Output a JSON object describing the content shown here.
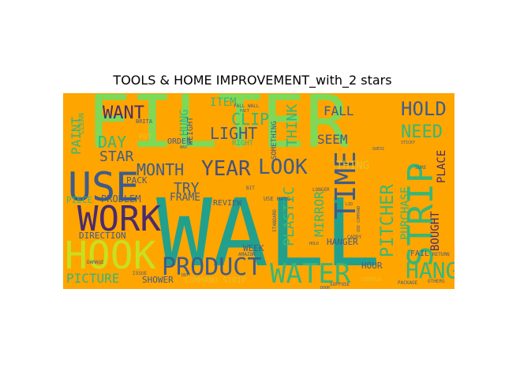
{
  "figure": {
    "title": "TOOLS & HOME IMPROVEMENT_with_2 stars",
    "background": "#FFA500"
  },
  "palette": {
    "lime": "#7ED957",
    "yellowgreen": "#C7E020",
    "teal": "#21A08D",
    "tealLight": "#35B779",
    "blue": "#3E5C8A",
    "slate": "#46507A",
    "purple": "#4A2C6D",
    "gold": "#E8C02A"
  },
  "words": [
    {
      "text": "FILTER",
      "color": "#7ED957"
    },
    {
      "text": "WALL",
      "color": "#21A08D"
    },
    {
      "text": "HOOK",
      "color": "#C7E020"
    },
    {
      "text": "WORK",
      "color": "#4A2C6D"
    },
    {
      "text": "USE",
      "color": "#3E5C8A"
    },
    {
      "text": "STRIP",
      "color": "#35B779"
    },
    {
      "text": "WATER",
      "color": "#35B779"
    },
    {
      "text": "HANG",
      "color": "#35B779"
    },
    {
      "text": "PRODUCT",
      "color": "#3E5C8A"
    },
    {
      "text": "TIME",
      "color": "#3E5C8A"
    },
    {
      "text": "YEAR",
      "color": "#46507A"
    },
    {
      "text": "LOOK",
      "color": "#3E5C8A"
    },
    {
      "text": "MONTH",
      "color": "#3E5C8A"
    },
    {
      "text": "HOLD",
      "color": "#3E5C8A"
    },
    {
      "text": "NEED",
      "color": "#35B779"
    },
    {
      "text": "WANT",
      "color": "#4A2C6D"
    },
    {
      "text": "LIGHT",
      "color": "#3E5C8A"
    },
    {
      "text": "CLIP",
      "color": "#35B779"
    },
    {
      "text": "DAY",
      "color": "#35B779"
    },
    {
      "text": "STAR",
      "color": "#3E5C8A"
    },
    {
      "text": "TRY",
      "color": "#3E5C8A"
    },
    {
      "text": "PITCHER",
      "color": "#35B779"
    },
    {
      "text": "PLASTIC",
      "color": "#35B779"
    },
    {
      "text": "THINK",
      "color": "#35B779"
    },
    {
      "text": "PAINT",
      "color": "#35B779"
    },
    {
      "text": "MIRROR",
      "color": "#35B779"
    },
    {
      "text": "PICTURE",
      "color": "#35B779"
    },
    {
      "text": "SEEM",
      "color": "#3E5C8A"
    },
    {
      "text": "FALL",
      "color": "#3E5C8A"
    },
    {
      "text": "ITEM",
      "color": "#35B779"
    },
    {
      "text": "HUNG",
      "color": "#35B779"
    },
    {
      "text": "PURCHASE",
      "color": "#35B779"
    },
    {
      "text": "BOUGHT",
      "color": "#4A2C6D"
    },
    {
      "text": "PLACE",
      "color": "#4A2C6D"
    },
    {
      "text": "THING",
      "color": "#E8C02A"
    },
    {
      "text": "FRAME",
      "color": "#3E5C8A"
    },
    {
      "text": "PROBLEM",
      "color": "#3E5C8A"
    },
    {
      "text": "PIECE",
      "color": "#35B779"
    },
    {
      "text": "PACK",
      "color": "#3E5C8A"
    },
    {
      "text": "REVIEW",
      "color": "#3E5C8A"
    },
    {
      "text": "DIRECTION",
      "color": "#3E5C8A"
    },
    {
      "text": "WEEK",
      "color": "#3E5C8A"
    },
    {
      "text": "HANGER",
      "color": "#3E5C8A"
    },
    {
      "text": "HOUR",
      "color": "#3E5C8A"
    },
    {
      "text": "FAIL",
      "color": "#3E5C8A"
    },
    {
      "text": "SHOWER",
      "color": "#3E5C8A"
    },
    {
      "text": "COMMAND STRIP",
      "color": "#E8C02A"
    },
    {
      "text": "ORDER",
      "color": "#3E5C8A"
    },
    {
      "text": "WEIGHT",
      "color": "#3E5C8A"
    },
    {
      "text": "CLEAN",
      "color": "#35B779"
    },
    {
      "text": "SOMETHING",
      "color": "#3E5C8A"
    },
    {
      "text": "RIGHT",
      "color": "#35B779"
    },
    {
      "text": "PUT",
      "color": "#E8C02A"
    },
    {
      "text": "BRITA",
      "color": "#3E5C8A"
    },
    {
      "text": "USE HANG",
      "color": "#3E5C8A"
    },
    {
      "text": "AMAZON",
      "color": "#3E5C8A"
    },
    {
      "text": "CADDY",
      "color": "#3E5C8A"
    },
    {
      "text": "COUPLE",
      "color": "#E8C02A"
    },
    {
      "text": "SUPPOSE",
      "color": "#3E5C8A"
    },
    {
      "text": "PACKAGE",
      "color": "#3E5C8A"
    },
    {
      "text": "DAMAGE",
      "color": "#3E5C8A"
    },
    {
      "text": "USE COMMAND",
      "color": "#3E5C8A"
    },
    {
      "text": "LONGER",
      "color": "#3E5C8A"
    },
    {
      "text": "RETURN",
      "color": "#3E5C8A"
    },
    {
      "text": "OTHERS",
      "color": "#3E5C8A"
    },
    {
      "text": "STICKY",
      "color": "#3E5C8A"
    },
    {
      "text": "SURE",
      "color": "#3E5C8A"
    },
    {
      "text": "STANDARD",
      "color": "#3E5C8A"
    },
    {
      "text": "DRY",
      "color": "#3E5C8A"
    },
    {
      "text": "ISSUE",
      "color": "#3E5C8A"
    },
    {
      "text": "HOLD",
      "color": "#3E5C8A"
    },
    {
      "text": "FALL WALL",
      "color": "#3E5C8A"
    },
    {
      "text": "LID",
      "color": "#3E5C8A"
    },
    {
      "text": "BIT",
      "color": "#3E5C8A"
    },
    {
      "text": "WAX",
      "color": "#3E5C8A"
    },
    {
      "text": "FACT",
      "color": "#3E5C8A"
    },
    {
      "text": "GUESS",
      "color": "#3E5C8A"
    },
    {
      "text": "DOOR",
      "color": "#3E5C8A"
    }
  ]
}
